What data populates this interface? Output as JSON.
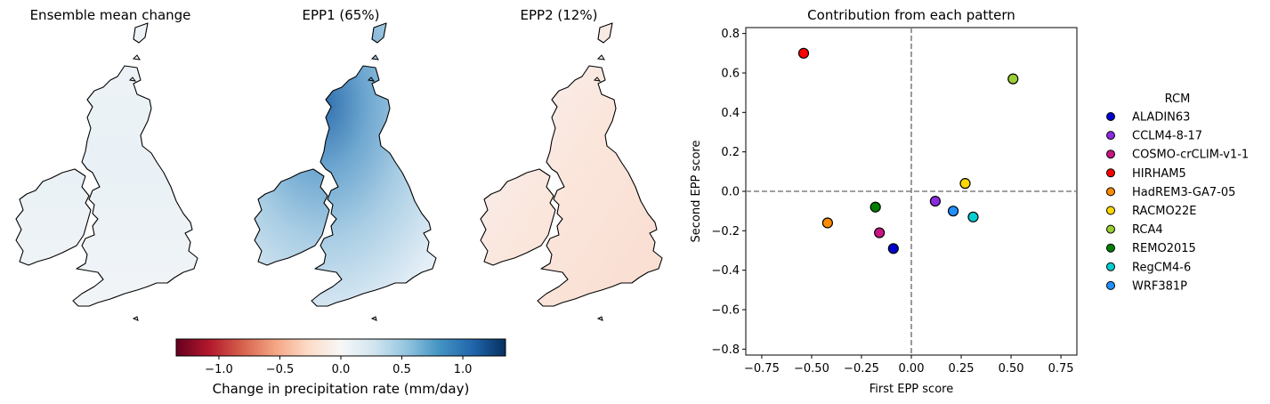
{
  "maps": [
    {
      "title": "Ensemble mean change",
      "pattern": "mean"
    },
    {
      "title": "EPP1 (65%)",
      "pattern": "epp1"
    },
    {
      "title": "EPP2 (12%)",
      "pattern": "epp2"
    }
  ],
  "colorbar": {
    "label": "Change in precipitation rate (mm/day)",
    "range": [
      -1.35,
      1.35
    ],
    "ticks": [
      -1.0,
      -0.5,
      0.0,
      0.5,
      1.0
    ],
    "tick_labels": [
      "−1.0",
      "−0.5",
      "0.0",
      "0.5",
      "1.0"
    ],
    "colormap": "RdBu",
    "stops": [
      "#67001f",
      "#b2182b",
      "#d6604d",
      "#f4a582",
      "#fddbc7",
      "#f7f7f7",
      "#d1e5f0",
      "#92c5de",
      "#4393c3",
      "#2166ac",
      "#053061"
    ]
  },
  "chart_data": {
    "type": "scatter",
    "title": "Contribution from each pattern",
    "xlabel": "First EPP score",
    "ylabel": "Second EPP score",
    "xlim": [
      -0.83,
      0.83
    ],
    "ylim": [
      -0.83,
      0.83
    ],
    "xticks": [
      -0.75,
      -0.5,
      -0.25,
      0.0,
      0.25,
      0.5,
      0.75
    ],
    "xtick_labels": [
      "−0.75",
      "−0.50",
      "−0.25",
      "0.00",
      "0.25",
      "0.50",
      "0.75"
    ],
    "yticks": [
      -0.8,
      -0.6,
      -0.4,
      -0.2,
      0.0,
      0.2,
      0.4,
      0.6,
      0.8
    ],
    "ytick_labels": [
      "−0.8",
      "−0.6",
      "−0.4",
      "−0.2",
      "0.0",
      "0.2",
      "0.4",
      "0.6",
      "0.8"
    ],
    "reference_lines": {
      "x": 0.0,
      "y": 0.0,
      "style": "dashed",
      "color": "#808080"
    },
    "grid": false,
    "legend": {
      "title": "RCM",
      "placement": "outside-right"
    },
    "series": [
      {
        "name": "ALADIN63",
        "color": "#0000cd",
        "x": -0.09,
        "y": -0.29
      },
      {
        "name": "CCLM4-8-17",
        "color": "#8a2be2",
        "x": 0.12,
        "y": -0.05
      },
      {
        "name": "COSMO-crCLIM-v1-1",
        "color": "#c71585",
        "x": -0.16,
        "y": -0.21
      },
      {
        "name": "HIRHAM5",
        "color": "#ff0000",
        "x": -0.54,
        "y": 0.7
      },
      {
        "name": "HadREM3-GA7-05",
        "color": "#ff8c00",
        "x": -0.42,
        "y": -0.16
      },
      {
        "name": "RACMO22E",
        "color": "#ffd700",
        "x": 0.27,
        "y": 0.04
      },
      {
        "name": "RCA4",
        "color": "#9acd32",
        "x": 0.51,
        "y": 0.57
      },
      {
        "name": "REMO2015",
        "color": "#008000",
        "x": -0.18,
        "y": -0.08
      },
      {
        "name": "RegCM4-6",
        "color": "#00ced1",
        "x": 0.31,
        "y": -0.13
      },
      {
        "name": "WRF381P",
        "color": "#1e90ff",
        "x": 0.21,
        "y": -0.1
      }
    ]
  }
}
